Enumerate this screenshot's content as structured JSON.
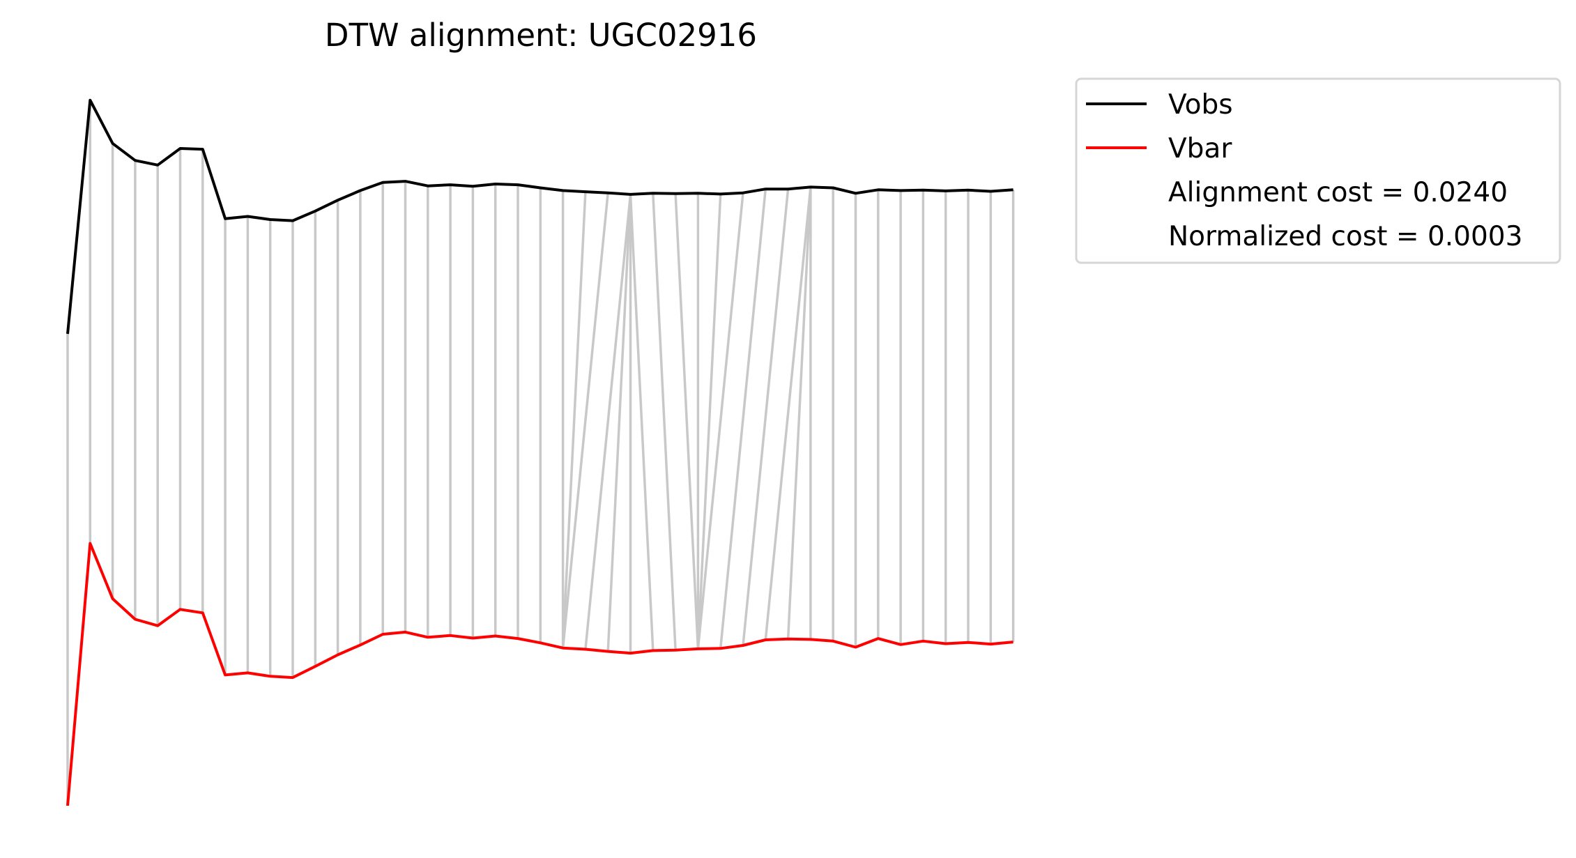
{
  "chart_data": {
    "type": "line",
    "title": "DTW alignment: UGC02916",
    "xlabel": "",
    "ylabel": "",
    "axes_visible": false,
    "grid": false,
    "legend_position": "upper-right-outside",
    "colors": {
      "vobs": "#000000",
      "vbar": "#ff0000",
      "connector": "#c8c8c8"
    },
    "series": [
      {
        "name": "Vobs",
        "color": "#000000",
        "values": [
          0,
          60.5,
          49.3,
          44.9,
          43.7,
          48.0,
          47.8,
          29.8,
          30.4,
          29.6,
          29.3,
          31.8,
          34.6,
          37.1,
          39.2,
          39.5,
          38.3,
          38.6,
          38.2,
          38.8,
          38.6,
          37.8,
          37.1,
          36.8,
          36.5,
          36.1,
          36.4,
          36.3,
          36.4,
          36.2,
          36.5,
          37.5,
          37.5,
          38.0,
          37.8,
          36.4,
          37.3,
          37.1,
          37.2,
          37.0,
          37.2,
          36.9,
          37.3
        ]
      },
      {
        "name": "Vbar",
        "color": "#ff0000",
        "values": [
          0,
          61.2,
          48.3,
          43.5,
          42.0,
          45.8,
          45.0,
          30.5,
          31.0,
          30.2,
          29.9,
          32.5,
          35.2,
          37.5,
          40.0,
          40.5,
          39.3,
          39.7,
          39.1,
          39.6,
          39.0,
          38.0,
          36.8,
          36.5,
          36.0,
          35.6,
          36.2,
          36.3,
          36.6,
          36.7,
          37.4,
          38.7,
          38.9,
          38.8,
          38.4,
          37.0,
          39.0,
          37.6,
          38.4,
          37.8,
          38.1,
          37.7,
          38.2
        ]
      }
    ],
    "alignment_path": [
      [
        0,
        0
      ],
      [
        1,
        1
      ],
      [
        2,
        2
      ],
      [
        3,
        3
      ],
      [
        4,
        4
      ],
      [
        5,
        5
      ],
      [
        6,
        6
      ],
      [
        7,
        7
      ],
      [
        8,
        8
      ],
      [
        9,
        9
      ],
      [
        10,
        10
      ],
      [
        11,
        11
      ],
      [
        12,
        12
      ],
      [
        13,
        13
      ],
      [
        14,
        14
      ],
      [
        15,
        15
      ],
      [
        16,
        16
      ],
      [
        17,
        17
      ],
      [
        18,
        18
      ],
      [
        19,
        19
      ],
      [
        20,
        20
      ],
      [
        21,
        21
      ],
      [
        22,
        22
      ],
      [
        23,
        22
      ],
      [
        24,
        22
      ],
      [
        25,
        23
      ],
      [
        25,
        24
      ],
      [
        25,
        25
      ],
      [
        25,
        26
      ],
      [
        26,
        27
      ],
      [
        27,
        28
      ],
      [
        28,
        28
      ],
      [
        29,
        28
      ],
      [
        30,
        28
      ],
      [
        31,
        29
      ],
      [
        32,
        30
      ],
      [
        33,
        31
      ],
      [
        33,
        32
      ],
      [
        33,
        33
      ],
      [
        34,
        34
      ],
      [
        35,
        35
      ],
      [
        36,
        36
      ],
      [
        37,
        37
      ],
      [
        38,
        38
      ],
      [
        39,
        39
      ],
      [
        40,
        40
      ],
      [
        41,
        41
      ],
      [
        42,
        42
      ]
    ],
    "legend": {
      "entries": [
        "Vobs",
        "Vbar"
      ],
      "notes": [
        "Alignment cost = 0.0240",
        "Normalized cost = 0.0003"
      ]
    }
  }
}
